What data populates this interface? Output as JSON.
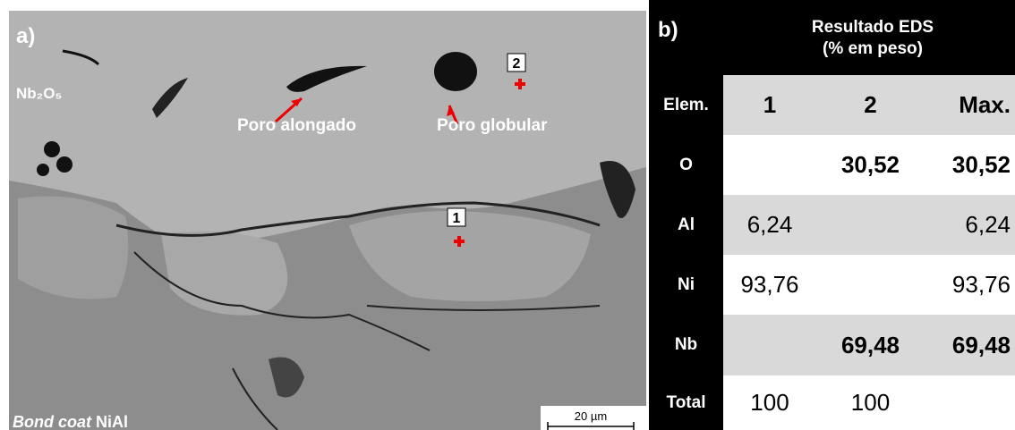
{
  "panel_a": {
    "label": "a)",
    "phase_label": "Nb₂O₅",
    "annotations": [
      "Poro alongado",
      "Poro globular"
    ],
    "points": [
      "1",
      "2"
    ],
    "bottom_label_italic": "Bond coat",
    "bottom_label": "NiAl",
    "scale_bar": "20 µm"
  },
  "panel_b": {
    "label": "b)",
    "title_line1": "Resultado EDS",
    "title_line2": "(% em peso)",
    "table": {
      "rows": [
        [
          "Elem.",
          "1",
          "2",
          "Max."
        ],
        [
          "O",
          null,
          "30,52",
          "30,52"
        ],
        [
          "Al",
          "6,24",
          null,
          "6,24"
        ],
        [
          "Ni",
          "93,76",
          null,
          "93,76"
        ],
        [
          "Nb",
          null,
          "69,48",
          "69,48"
        ],
        [
          "Total",
          "100",
          "100",
          null
        ]
      ]
    }
  }
}
